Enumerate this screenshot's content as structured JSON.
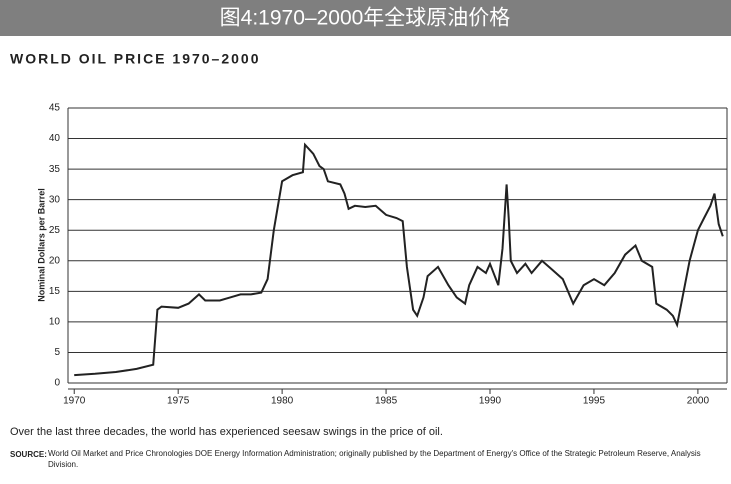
{
  "header": "图4:1970–2000年全球原油价格",
  "chart_data": {
    "type": "line",
    "title": "WORLD OIL PRICE 1970–2000",
    "y_label": "Nominal Dollars per Barrel",
    "caption": "Over the last three decades, the world has experienced seesaw swings in the price of oil.",
    "source_label": "SOURCE:",
    "source": "World Oil Market and Price Chronologies DOE Energy Information Administration; originally published by the Department of Energy's Office of the Strategic Petroleum Reserve, Analysis Division.",
    "color": "#222222",
    "grid": true,
    "xlim": [
      1969.7,
      2001.4
    ],
    "xticks": [
      1970,
      1975,
      1980,
      1985,
      1990,
      1995,
      2000
    ],
    "ylim": [
      0,
      45
    ],
    "yticks": [
      0,
      5,
      10,
      15,
      20,
      25,
      30,
      35,
      40,
      45
    ],
    "x": [
      1970,
      1971,
      1972,
      1973,
      1973.8,
      1974,
      1974.2,
      1975,
      1975.5,
      1976,
      1976.3,
      1977,
      1977.5,
      1978,
      1978.5,
      1979,
      1979.3,
      1979.6,
      1980,
      1980.5,
      1981,
      1981.1,
      1981.5,
      1981.8,
      1982,
      1982.2,
      1982.8,
      1983,
      1983.2,
      1983.5,
      1984,
      1984.5,
      1985,
      1985.5,
      1985.8,
      1986,
      1986.3,
      1986.5,
      1986.8,
      1987,
      1987.5,
      1988,
      1988.4,
      1988.8,
      1989,
      1989.4,
      1989.8,
      1990,
      1990.4,
      1990.6,
      1990.8,
      1990.9,
      1991,
      1991.3,
      1991.7,
      1992,
      1992.5,
      1993,
      1993.5,
      1994,
      1994.5,
      1995,
      1995.5,
      1996,
      1996.5,
      1997,
      1997.3,
      1997.8,
      1998,
      1998.5,
      1998.8,
      1999,
      1999.2,
      1999.6,
      2000,
      2000.3,
      2000.6,
      2000.8,
      2001,
      2001.2
    ],
    "values": [
      1.3,
      1.5,
      1.8,
      2.3,
      3,
      12,
      12.5,
      12.3,
      13,
      14.5,
      13.5,
      13.5,
      14,
      14.5,
      14.5,
      14.8,
      17,
      25,
      33,
      34,
      34.5,
      39,
      37.5,
      35.5,
      35,
      33,
      32.5,
      31,
      28.5,
      29,
      28.8,
      29,
      27.5,
      27,
      26.5,
      19,
      12,
      11,
      14,
      17.5,
      19,
      16,
      14,
      13,
      16,
      19,
      18,
      19.5,
      16,
      22,
      32.5,
      27,
      20,
      18,
      19.5,
      18,
      20,
      18.5,
      17,
      13,
      16,
      17,
      16,
      18,
      21,
      22.5,
      20,
      19,
      13,
      12,
      11,
      9.5,
      13,
      20,
      25,
      27,
      29,
      31,
      26,
      24
    ]
  }
}
